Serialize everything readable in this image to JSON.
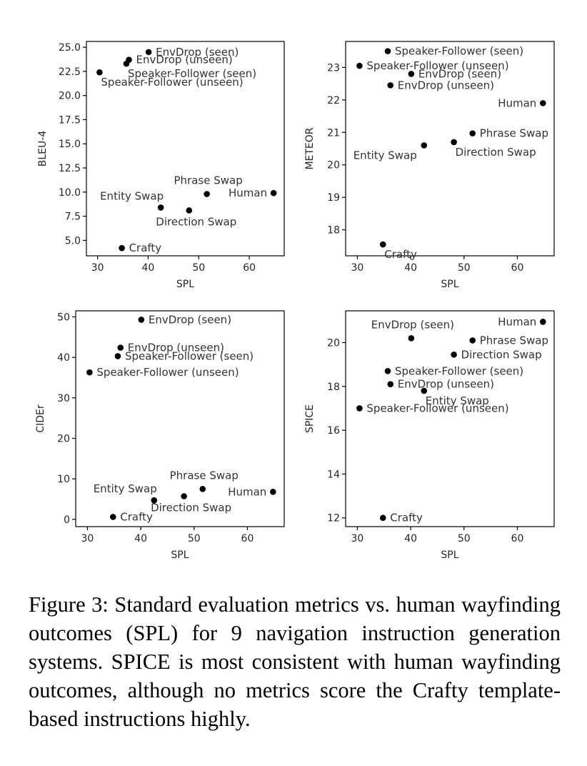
{
  "caption": "Figure 3:  Standard evaluation metrics vs.  human wayfinding outcomes (SPL) for 9 navigation instruction generation systems.  SPICE is most consistent with human wayfinding outcomes, although no metrics score the Crafty template-based instructions highly.",
  "chart_data": [
    {
      "type": "scatter",
      "title": "",
      "xlabel": "SPL",
      "ylabel": "BLEU-4",
      "xlim": [
        27.8,
        66.9
      ],
      "ylim": [
        3.4,
        25.6
      ],
      "xticks": [
        30,
        40,
        50,
        60
      ],
      "xtick_labels": [
        "30",
        "40",
        "50",
        "60"
      ],
      "yticks": [
        5.0,
        7.5,
        10.0,
        12.5,
        15.0,
        17.5,
        20.0,
        22.5,
        25.0
      ],
      "ytick_labels": [
        "5.0",
        "7.5",
        "10.0",
        "12.5",
        "15.0",
        "17.5",
        "20.0",
        "22.5",
        "25.0"
      ],
      "grid": false,
      "points": [
        {
          "label": "EnvDrop (seen)",
          "x": 40.1,
          "y": 24.5,
          "label_pos": "right"
        },
        {
          "label": "EnvDrop (unseen)",
          "x": 36.2,
          "y": 23.7,
          "label_pos": "right"
        },
        {
          "label": "Speaker-Follower (seen)",
          "x": 35.7,
          "y": 23.3,
          "label_pos": "below-right"
        },
        {
          "label": "Speaker-Follower (unseen)",
          "x": 30.4,
          "y": 22.4,
          "label_pos": "below-right"
        },
        {
          "label": "Phrase Swap",
          "x": 51.6,
          "y": 9.8,
          "label_pos": "above"
        },
        {
          "label": "Human",
          "x": 64.8,
          "y": 9.9,
          "label_pos": "left"
        },
        {
          "label": "Entity Swap",
          "x": 42.5,
          "y": 8.4,
          "label_pos": "above-left"
        },
        {
          "label": "Direction Swap",
          "x": 48.1,
          "y": 8.1,
          "label_pos": "below"
        },
        {
          "label": "Crafty",
          "x": 34.8,
          "y": 4.2,
          "label_pos": "right"
        }
      ]
    },
    {
      "type": "scatter",
      "title": "",
      "xlabel": "SPL",
      "ylabel": "METEOR",
      "xlim": [
        27.8,
        66.9
      ],
      "ylim": [
        17.2,
        23.8
      ],
      "xticks": [
        30,
        40,
        50,
        60
      ],
      "xtick_labels": [
        "30",
        "40",
        "50",
        "60"
      ],
      "yticks": [
        18,
        19,
        20,
        21,
        22,
        23
      ],
      "ytick_labels": [
        "18",
        "19",
        "20",
        "21",
        "22",
        "23"
      ],
      "grid": false,
      "points": [
        {
          "label": "Speaker-Follower (seen)",
          "x": 35.7,
          "y": 23.5,
          "label_pos": "right"
        },
        {
          "label": "Speaker-Follower (unseen)",
          "x": 30.4,
          "y": 23.05,
          "label_pos": "right"
        },
        {
          "label": "EnvDrop (seen)",
          "x": 40.1,
          "y": 22.8,
          "label_pos": "right"
        },
        {
          "label": "EnvDrop (unseen)",
          "x": 36.2,
          "y": 22.45,
          "label_pos": "right"
        },
        {
          "label": "Human",
          "x": 64.8,
          "y": 21.9,
          "label_pos": "left"
        },
        {
          "label": "Phrase Swap",
          "x": 51.6,
          "y": 20.97,
          "label_pos": "right"
        },
        {
          "label": "Direction Swap",
          "x": 48.1,
          "y": 20.7,
          "label_pos": "below-right"
        },
        {
          "label": "Entity Swap",
          "x": 42.5,
          "y": 20.6,
          "label_pos": "below-left"
        },
        {
          "label": "Crafty",
          "x": 34.8,
          "y": 17.55,
          "label_pos": "below-right"
        }
      ]
    },
    {
      "type": "scatter",
      "title": "",
      "xlabel": "SPL",
      "ylabel": "CIDEr",
      "xlim": [
        27.8,
        66.9
      ],
      "ylim": [
        -1.8,
        51.5
      ],
      "xticks": [
        30,
        40,
        50,
        60
      ],
      "xtick_labels": [
        "30",
        "40",
        "50",
        "60"
      ],
      "yticks": [
        0,
        10,
        20,
        30,
        40,
        50
      ],
      "ytick_labels": [
        "0",
        "10",
        "20",
        "30",
        "40",
        "50"
      ],
      "grid": false,
      "points": [
        {
          "label": "EnvDrop (seen)",
          "x": 40.1,
          "y": 49.3,
          "label_pos": "right"
        },
        {
          "label": "EnvDrop (unseen)",
          "x": 36.2,
          "y": 42.4,
          "label_pos": "right"
        },
        {
          "label": "Speaker-Follower (seen)",
          "x": 35.7,
          "y": 40.3,
          "label_pos": "right"
        },
        {
          "label": "Speaker-Follower (unseen)",
          "x": 30.4,
          "y": 36.3,
          "label_pos": "right"
        },
        {
          "label": "Phrase Swap",
          "x": 51.6,
          "y": 7.5,
          "label_pos": "above"
        },
        {
          "label": "Human",
          "x": 64.8,
          "y": 6.8,
          "label_pos": "left"
        },
        {
          "label": "Entity Swap",
          "x": 42.5,
          "y": 4.7,
          "label_pos": "above-left"
        },
        {
          "label": "Direction Swap",
          "x": 48.1,
          "y": 5.7,
          "label_pos": "below"
        },
        {
          "label": "Crafty",
          "x": 34.8,
          "y": 0.6,
          "label_pos": "right"
        }
      ]
    },
    {
      "type": "scatter",
      "title": "",
      "xlabel": "SPL",
      "ylabel": "SPICE",
      "xlim": [
        27.8,
        66.9
      ],
      "ylim": [
        11.6,
        21.45
      ],
      "xticks": [
        30,
        40,
        50,
        60
      ],
      "xtick_labels": [
        "30",
        "40",
        "50",
        "60"
      ],
      "yticks": [
        12,
        14,
        16,
        18,
        20
      ],
      "ytick_labels": [
        "12",
        "14",
        "16",
        "18",
        "20"
      ],
      "grid": false,
      "points": [
        {
          "label": "Human",
          "x": 64.8,
          "y": 20.95,
          "label_pos": "left"
        },
        {
          "label": "EnvDrop (seen)",
          "x": 40.1,
          "y": 20.2,
          "label_pos": "above"
        },
        {
          "label": "Phrase Swap",
          "x": 51.6,
          "y": 20.1,
          "label_pos": "right"
        },
        {
          "label": "Direction Swap",
          "x": 48.1,
          "y": 19.45,
          "label_pos": "right"
        },
        {
          "label": "Speaker-Follower (seen)",
          "x": 35.7,
          "y": 18.7,
          "label_pos": "right"
        },
        {
          "label": "EnvDrop (unseen)",
          "x": 36.2,
          "y": 18.1,
          "label_pos": "right"
        },
        {
          "label": "Entity Swap",
          "x": 42.5,
          "y": 17.8,
          "label_pos": "below-right"
        },
        {
          "label": "Speaker-Follower (unseen)",
          "x": 30.4,
          "y": 17.0,
          "label_pos": "right"
        },
        {
          "label": "Crafty",
          "x": 34.8,
          "y": 12.0,
          "label_pos": "right"
        }
      ]
    }
  ]
}
